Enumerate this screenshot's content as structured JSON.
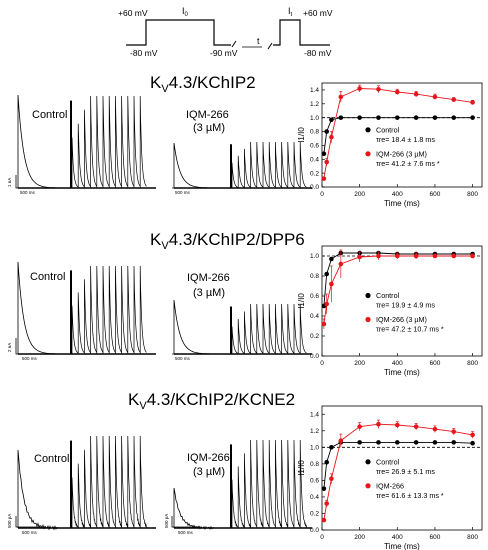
{
  "protocol": {
    "v_hold1": "+60 mV",
    "v_pre": "-80 mV",
    "i0": "I",
    "i0_sub": "0",
    "v_rec": "-90 mV",
    "t": "t",
    "i1": "I",
    "i1_sub": "t",
    "v_hold2": "+60 mV",
    "v_post": "-80 mV"
  },
  "panels": [
    {
      "title_pre": "K",
      "title_sub": "V",
      "title_post": "4.3/KChIP2",
      "control_label": "Control",
      "drug_label": "IQM-266",
      "drug_conc": "(3 µM)",
      "scale_y": "1 nA",
      "scale_x": "500 ms",
      "scale_y2": "",
      "scale_x2": "500 ms"
    },
    {
      "title_pre": "K",
      "title_sub": "V",
      "title_post": "4.3/KChIP2/DPP6",
      "control_label": "Control",
      "drug_label": "IQM-266",
      "drug_conc": "(3 µM)",
      "scale_y": "2 nA",
      "scale_x": "500 ms",
      "scale_y2": "",
      "scale_x2": "500 ms"
    },
    {
      "title_pre": "K",
      "title_sub": "V",
      "title_post": "4.3/KChIP2/KCNE2",
      "control_label": "Control",
      "drug_label": "IQM-266",
      "drug_conc": "(3 µM)",
      "scale_y": "500 pA",
      "scale_x": "500 ms",
      "scale_y2": "500 pA",
      "scale_x2": "500 ms"
    }
  ],
  "chart_data": [
    {
      "type": "scatter",
      "xlabel": "Time (ms)",
      "ylabel": "I1/I0",
      "xlim": [
        0,
        850
      ],
      "ylim": [
        0,
        1.5
      ],
      "xticks": [
        0,
        200,
        400,
        600,
        800
      ],
      "yticks": [
        0.0,
        0.2,
        0.4,
        0.6,
        0.8,
        1.0,
        1.2,
        1.4
      ],
      "reference_line": 1.0,
      "series": [
        {
          "name": "Control",
          "color": "#000000",
          "x": [
            10,
            25,
            50,
            100,
            200,
            300,
            400,
            500,
            600,
            700,
            800
          ],
          "y": [
            0.48,
            0.8,
            0.97,
            1.0,
            1.0,
            1.0,
            1.0,
            1.0,
            1.0,
            1.0,
            1.0
          ],
          "err": [
            0,
            0,
            0,
            0,
            0,
            0,
            0,
            0,
            0,
            0,
            0
          ],
          "fit_tau": 18.4,
          "note": "τre= 18.4 ± 1.8 ms"
        },
        {
          "name": "IQM-266 (3 µM)",
          "color": "#e8151b",
          "x": [
            10,
            25,
            50,
            100,
            200,
            300,
            400,
            500,
            600,
            700,
            800
          ],
          "y": [
            0.12,
            0.36,
            0.72,
            1.3,
            1.42,
            1.41,
            1.37,
            1.34,
            1.3,
            1.26,
            1.22
          ],
          "err": [
            0.02,
            0.05,
            0.08,
            0.08,
            0.05,
            0.05,
            0.04,
            0.04,
            0.04,
            0.03,
            0.03
          ],
          "fit_tau": 41.2,
          "note": "τre= 41.2 ± 7.6 ms *"
        }
      ]
    },
    {
      "type": "scatter",
      "xlabel": "Time (ms)",
      "ylabel": "I1/I0",
      "xlim": [
        0,
        850
      ],
      "ylim": [
        0,
        1.1
      ],
      "xticks": [
        0,
        200,
        400,
        600,
        800
      ],
      "yticks": [
        0.0,
        0.2,
        0.4,
        0.6,
        0.8,
        1.0
      ],
      "reference_line": 1.0,
      "series": [
        {
          "name": "Control",
          "color": "#000000",
          "x": [
            10,
            25,
            50,
            100,
            200,
            300,
            400,
            500,
            600,
            700,
            800
          ],
          "y": [
            0.5,
            0.82,
            0.97,
            1.03,
            1.03,
            1.03,
            1.02,
            1.02,
            1.02,
            1.02,
            1.02
          ],
          "err": [
            0,
            0,
            0,
            0,
            0,
            0,
            0,
            0,
            0,
            0,
            0
          ],
          "fit_tau": 19.9,
          "note": "τre= 19.9 ± 4.9 ms"
        },
        {
          "name": "IQM-266 (3 µM)",
          "color": "#e8151b",
          "x": [
            10,
            25,
            50,
            100,
            200,
            300,
            400,
            500,
            600,
            700,
            800
          ],
          "y": [
            0.32,
            0.52,
            0.72,
            0.92,
            0.99,
            1.0,
            1.0,
            1.0,
            1.0,
            1.0,
            1.0
          ],
          "err": [
            0.05,
            0.1,
            0.18,
            0.14,
            0.05,
            0.04,
            0.03,
            0.03,
            0.02,
            0.02,
            0.02
          ],
          "fit_tau": 47.2,
          "note": "τre= 47.2 ± 10.7 ms *"
        }
      ]
    },
    {
      "type": "scatter",
      "xlabel": "Time (ms)",
      "ylabel": "I1/I0",
      "xlim": [
        0,
        850
      ],
      "ylim": [
        0,
        1.5
      ],
      "xticks": [
        0,
        200,
        400,
        600,
        800
      ],
      "yticks": [
        0.0,
        0.2,
        0.4,
        0.6,
        0.8,
        1.0,
        1.2,
        1.4
      ],
      "reference_line": 1.0,
      "series": [
        {
          "name": "Control",
          "color": "#000000",
          "x": [
            10,
            25,
            50,
            100,
            200,
            300,
            400,
            500,
            600,
            700,
            800
          ],
          "y": [
            0.5,
            0.82,
            1.0,
            1.06,
            1.06,
            1.06,
            1.06,
            1.06,
            1.06,
            1.06,
            1.05
          ],
          "err": [
            0,
            0,
            0,
            0,
            0,
            0,
            0,
            0,
            0,
            0,
            0
          ],
          "fit_tau": 26.9,
          "note": "τre= 26.9 ± 5.1 ms"
        },
        {
          "name": "IQM-266",
          "color": "#e8151b",
          "x": [
            10,
            25,
            50,
            100,
            200,
            300,
            400,
            500,
            600,
            700,
            800
          ],
          "y": [
            0.12,
            0.32,
            0.62,
            1.08,
            1.25,
            1.28,
            1.27,
            1.25,
            1.22,
            1.19,
            1.15
          ],
          "err": [
            0.02,
            0.04,
            0.06,
            0.08,
            0.05,
            0.05,
            0.04,
            0.04,
            0.04,
            0.04,
            0.04
          ],
          "fit_tau": 61.6,
          "note": "τre= 61.6 ± 13.3 ms *"
        }
      ]
    }
  ]
}
